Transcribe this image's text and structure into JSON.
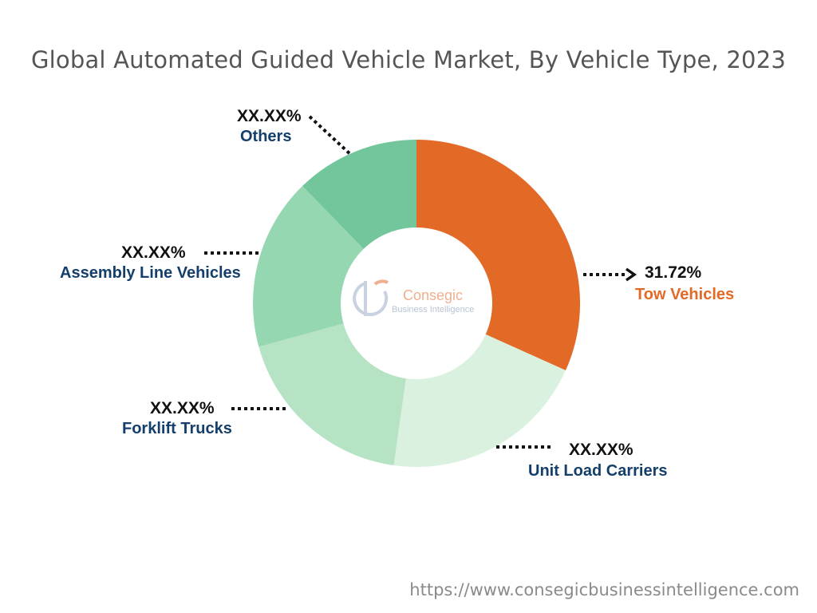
{
  "title": "Global Automated Guided Vehicle Market, By Vehicle Type, 2023",
  "footer_url": "https://www.consegicbusinessintelligence.com",
  "logo": {
    "name": "Consegic",
    "subtitle": "Business Intelligence"
  },
  "chart_data": {
    "type": "donut",
    "title": "Global Automated Guided Vehicle Market, By Vehicle Type, 2023",
    "start_angle_deg": 0,
    "segments": [
      {
        "name": "Tow Vehicles",
        "value": 31.72,
        "value_label": "31.72%",
        "color": "#e36926",
        "label_color": "#e36926"
      },
      {
        "name": "Unit Load Carriers",
        "value": 20.5,
        "value_label": "XX.XX%",
        "color": "#dbf1df",
        "label_color": "#143f6b"
      },
      {
        "name": "Forklift Trucks",
        "value": 18.5,
        "value_label": "XX.XX%",
        "color": "#b5e3c4",
        "label_color": "#143f6b"
      },
      {
        "name": "Assembly Line Vehicles",
        "value": 17.0,
        "value_label": "XX.XX%",
        "color": "#95d7b0",
        "label_color": "#143f6b"
      },
      {
        "name": "Others",
        "value": 12.28,
        "value_label": "XX.XX%",
        "color": "#73c69c",
        "label_color": "#143f6b"
      }
    ]
  }
}
